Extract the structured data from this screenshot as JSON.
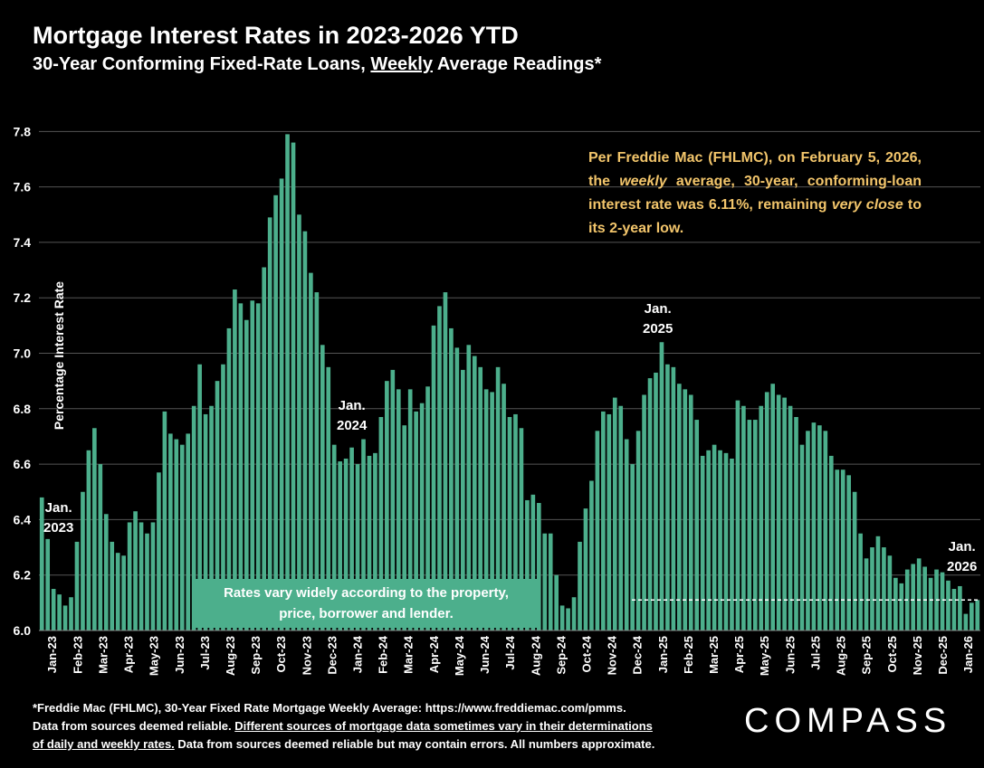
{
  "header": {
    "title": "Mortgage Interest Rates in 2023-2026 YTD",
    "subtitle_before": "30-Year Conforming Fixed-Rate Loans, ",
    "subtitle_underline": "Weekly",
    "subtitle_after": " Average Readings*"
  },
  "note": {
    "p1": "Per Freddie Mac (FHLMC), on February 5, 2026, the ",
    "p1_italic": "weekly",
    "p2": " average, 30-year, conforming-loan interest rate was 6.11%, remaining ",
    "p2_italic": "very close",
    "p3": " to its 2-year low."
  },
  "band": {
    "line1": "Rates vary widely according to the property,",
    "line2": "price, borrower and lender."
  },
  "annotations": {
    "jan2023_a": "Jan.",
    "jan2023_b": "2023",
    "jan2024_a": "Jan.",
    "jan2024_b": "2024",
    "jan2025_a": "Jan.",
    "jan2025_b": "2025",
    "jan2026_a": "Jan.",
    "jan2026_b": "2026"
  },
  "footer": {
    "line1": "*Freddie Mac (FHLMC), 30-Year Fixed Rate Mortgage Weekly Average:  https://www.freddiemac.com/pmms.",
    "line2a": "Data from sources deemed reliable. ",
    "line2u": "Different sources of mortgage data sometimes vary in their determinations",
    "line3u": "of daily and weekly rates.",
    "line3b": " Data from sources deemed reliable but may contain errors. All numbers approximate."
  },
  "brand": {
    "logo": "COMPASS"
  },
  "colors": {
    "bar": "#4caf8c",
    "background": "#000000",
    "note": "#f2c56b",
    "grid": "#555555"
  },
  "chart_data": {
    "type": "bar",
    "ylabel": "Percentage Interest  Rate",
    "ylim": [
      6.0,
      7.85
    ],
    "yticks": [
      "6.0",
      "6.2",
      "6.4",
      "6.6",
      "6.8",
      "7.0",
      "7.2",
      "7.4",
      "7.6",
      "7.8"
    ],
    "grid": true,
    "reference_line": 6.11,
    "month_labels": [
      "Jan-23",
      "Feb-23",
      "Mar-23",
      "Apr-23",
      "May-23",
      "Jun-23",
      "Jul-23",
      "Aug-23",
      "Sep-23",
      "Oct-23",
      "Nov-23",
      "Dec-23",
      "Jan-24",
      "Feb-24",
      "Mar-24",
      "Apr-24",
      "May-24",
      "Jun-24",
      "Jul-24",
      "Aug-24",
      "Sep-24",
      "Oct-24",
      "Nov-24",
      "Dec-24",
      "Jan-25",
      "Feb-25",
      "Mar-25",
      "Apr-25",
      "May-25",
      "Jun-25",
      "Jul-25",
      "Aug-25",
      "Sep-25",
      "Oct-25",
      "Nov-25",
      "Dec-25",
      "Jan-26"
    ],
    "values": [
      6.48,
      6.33,
      6.15,
      6.13,
      6.09,
      6.12,
      6.32,
      6.5,
      6.65,
      6.73,
      6.6,
      6.42,
      6.32,
      6.28,
      6.27,
      6.39,
      6.43,
      6.39,
      6.35,
      6.39,
      6.57,
      6.79,
      6.71,
      6.69,
      6.67,
      6.71,
      6.81,
      6.96,
      6.78,
      6.81,
      6.9,
      6.96,
      7.09,
      7.23,
      7.18,
      7.12,
      7.19,
      7.18,
      7.31,
      7.49,
      7.57,
      7.63,
      7.79,
      7.76,
      7.5,
      7.44,
      7.29,
      7.22,
      7.03,
      6.95,
      6.67,
      6.61,
      6.62,
      6.66,
      6.6,
      6.69,
      6.63,
      6.64,
      6.77,
      6.9,
      6.94,
      6.87,
      6.74,
      6.87,
      6.79,
      6.82,
      6.88,
      7.1,
      7.17,
      7.22,
      7.09,
      7.02,
      6.94,
      7.03,
      6.99,
      6.95,
      6.87,
      6.86,
      6.95,
      6.89,
      6.77,
      6.78,
      6.73,
      6.47,
      6.49,
      6.46,
      6.35,
      6.35,
      6.2,
      6.09,
      6.08,
      6.12,
      6.32,
      6.44,
      6.54,
      6.72,
      6.79,
      6.78,
      6.84,
      6.81,
      6.69,
      6.6,
      6.72,
      6.85,
      6.91,
      6.93,
      7.04,
      6.96,
      6.95,
      6.89,
      6.87,
      6.85,
      6.76,
      6.63,
      6.65,
      6.67,
      6.65,
      6.64,
      6.62,
      6.83,
      6.81,
      6.76,
      6.76,
      6.81,
      6.86,
      6.89,
      6.85,
      6.84,
      6.81,
      6.77,
      6.67,
      6.72,
      6.75,
      6.74,
      6.72,
      6.63,
      6.58,
      6.58,
      6.56,
      6.5,
      6.35,
      6.26,
      6.3,
      6.34,
      6.3,
      6.27,
      6.19,
      6.17,
      6.22,
      6.24,
      6.26,
      6.23,
      6.19,
      6.22,
      6.21,
      6.18,
      6.15,
      6.16,
      6.06,
      6.1,
      6.11
    ]
  }
}
